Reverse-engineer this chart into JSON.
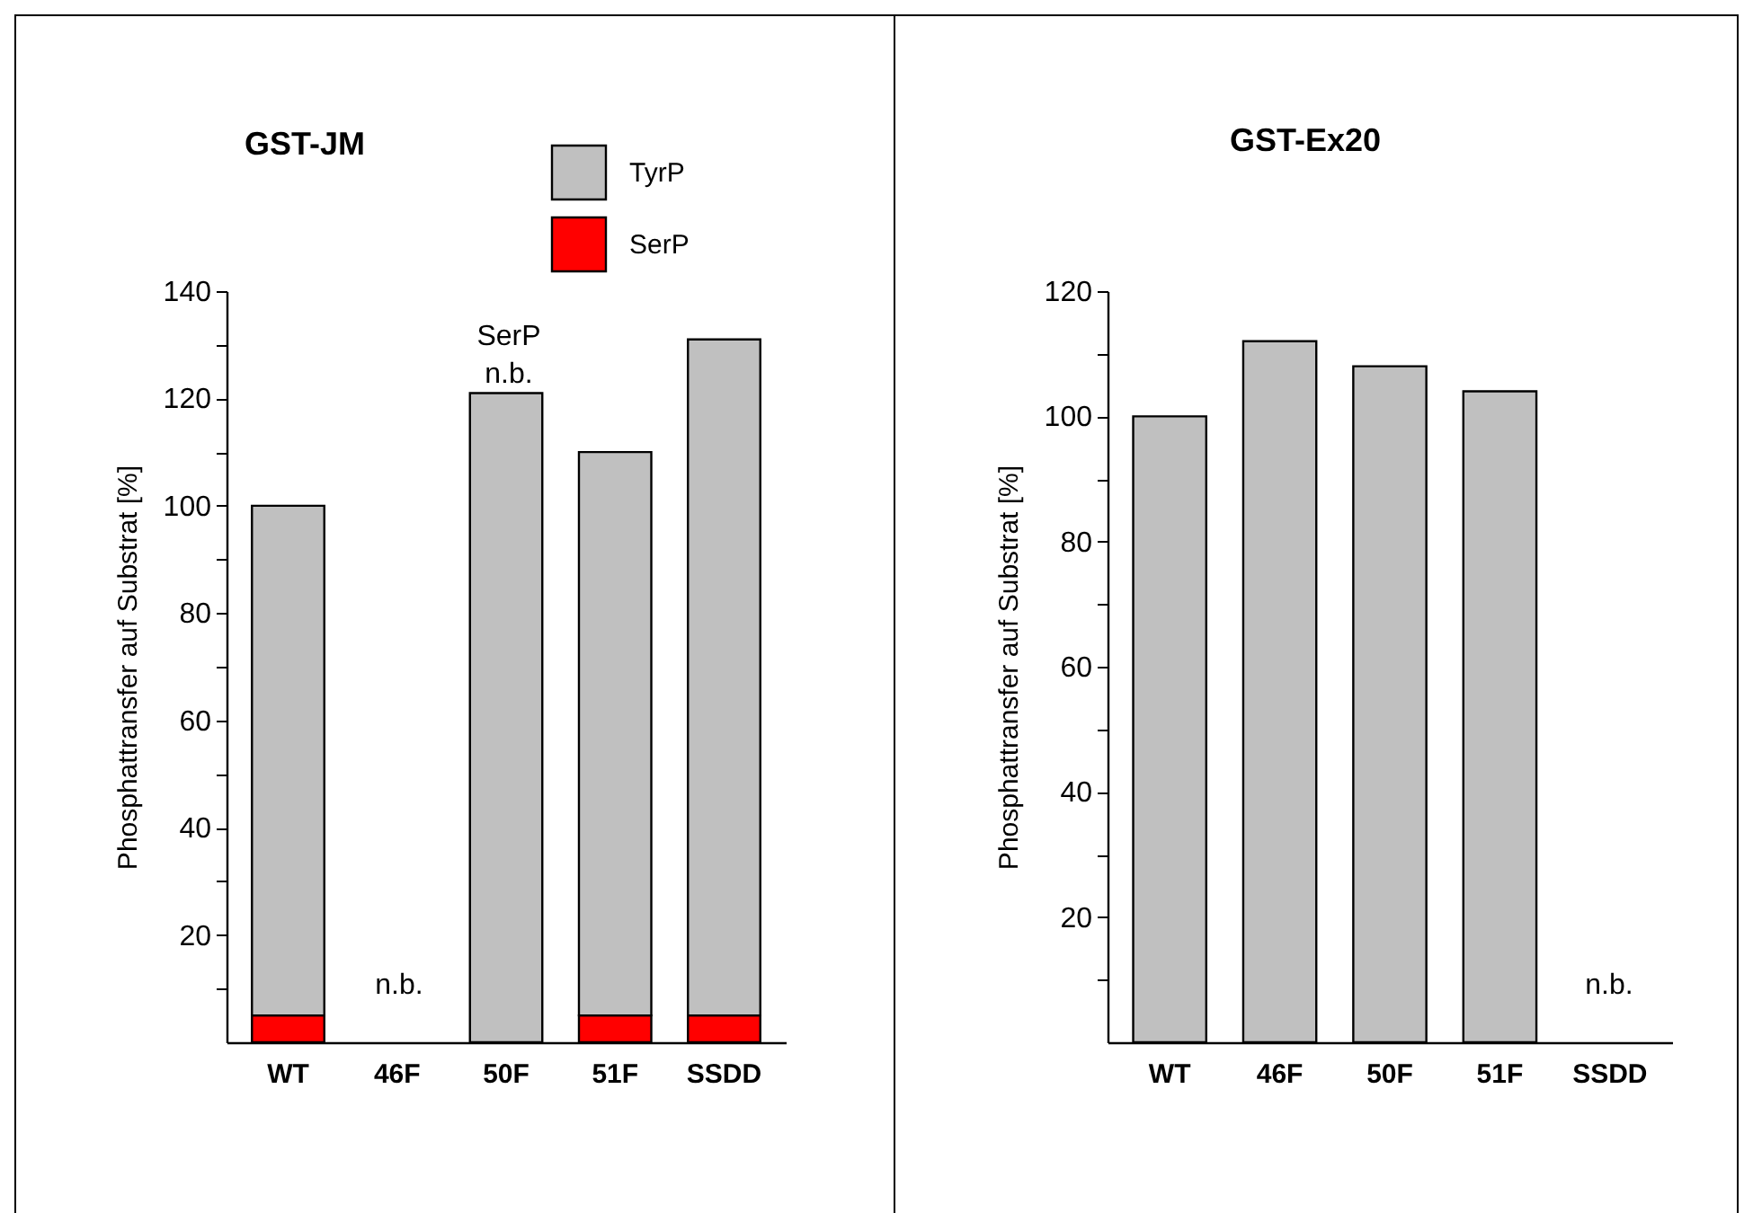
{
  "chart_data": [
    {
      "type": "bar",
      "title": "GST-JM",
      "ylabel": "Phosphattransfer auf Substrat  [%]",
      "categories": [
        "WT",
        "46F",
        "50F",
        "51F",
        "SSDD"
      ],
      "stacked": true,
      "legend": "top right",
      "series": [
        {
          "name": "SerP",
          "color": "#ff0000",
          "values": [
            5,
            null,
            null,
            5,
            5
          ]
        },
        {
          "name": "TyrP",
          "color": "#c0c0c0",
          "values": [
            95,
            null,
            121,
            105,
            126
          ]
        }
      ],
      "ylim": [
        0,
        140
      ],
      "yticks": [
        {
          "value": 10,
          "label": null
        },
        20,
        {
          "value": 30,
          "label": null
        },
        40,
        {
          "value": 50,
          "label": null
        },
        60,
        {
          "value": 70,
          "label": null
        },
        80,
        {
          "value": 90,
          "label": null
        },
        100,
        {
          "value": 110,
          "label": null
        },
        120,
        {
          "value": 130,
          "label": null
        },
        140
      ],
      "annotations": [
        "n.b.",
        "SerP n.b."
      ]
    },
    {
      "type": "bar",
      "title": "GST-Ex20",
      "ylabel": "Phosphattransfer auf Substrat  [%]",
      "categories": [
        "WT",
        "46F",
        "50F",
        "51F",
        "SSDD"
      ],
      "series": [
        {
          "color": "#c0c0c0",
          "values": [
            100,
            112,
            108,
            104,
            null
          ]
        }
      ],
      "ylim": [
        0,
        120
      ],
      "yticks": [
        {
          "value": 10,
          "label": null
        },
        20,
        {
          "value": 30,
          "label": null
        },
        40,
        {
          "value": 50,
          "label": null
        },
        60,
        {
          "value": 70,
          "label": null
        },
        80,
        {
          "value": 90,
          "label": null
        },
        100,
        {
          "value": 110,
          "label": null
        },
        120
      ],
      "annotations": [
        "n.b."
      ]
    }
  ]
}
